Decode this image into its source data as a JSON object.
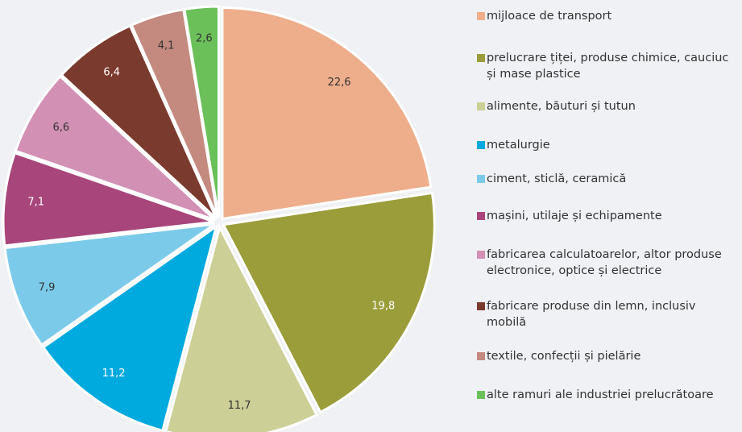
{
  "chart_data": {
    "type": "pie",
    "categories": [
      "mijloace de transport",
      "prelucrare țiței, produse chimice, cauciuc și mase plastice",
      "alimente, băuturi și tutun",
      "metalurgie",
      "ciment, sticlă, ceramică",
      "mașini, utilaje și echipamente",
      "fabricarea calculatoarelor, altor produse electronice, optice și electrice",
      "fabricare produse din lemn, inclusiv mobilă",
      "textile, confecții și pielărie",
      "alte ramuri ale industriei prelucrătoare"
    ],
    "values": [
      22.6,
      19.8,
      11.7,
      11.2,
      7.9,
      7.1,
      6.6,
      6.4,
      4.1,
      2.6
    ],
    "value_labels": [
      "22,6",
      "19,8",
      "11,7",
      "11,2",
      "7,9",
      "7,1",
      "6,6",
      "6,4",
      "4,1",
      "2,6"
    ],
    "colors": [
      "#eeae8c",
      "#9a9d3a",
      "#cccf96",
      "#00a9de",
      "#7ccaea",
      "#a8457b",
      "#d290b4",
      "#7b3a2e",
      "#c48a7f",
      "#6cc05a"
    ],
    "legend": "right"
  }
}
